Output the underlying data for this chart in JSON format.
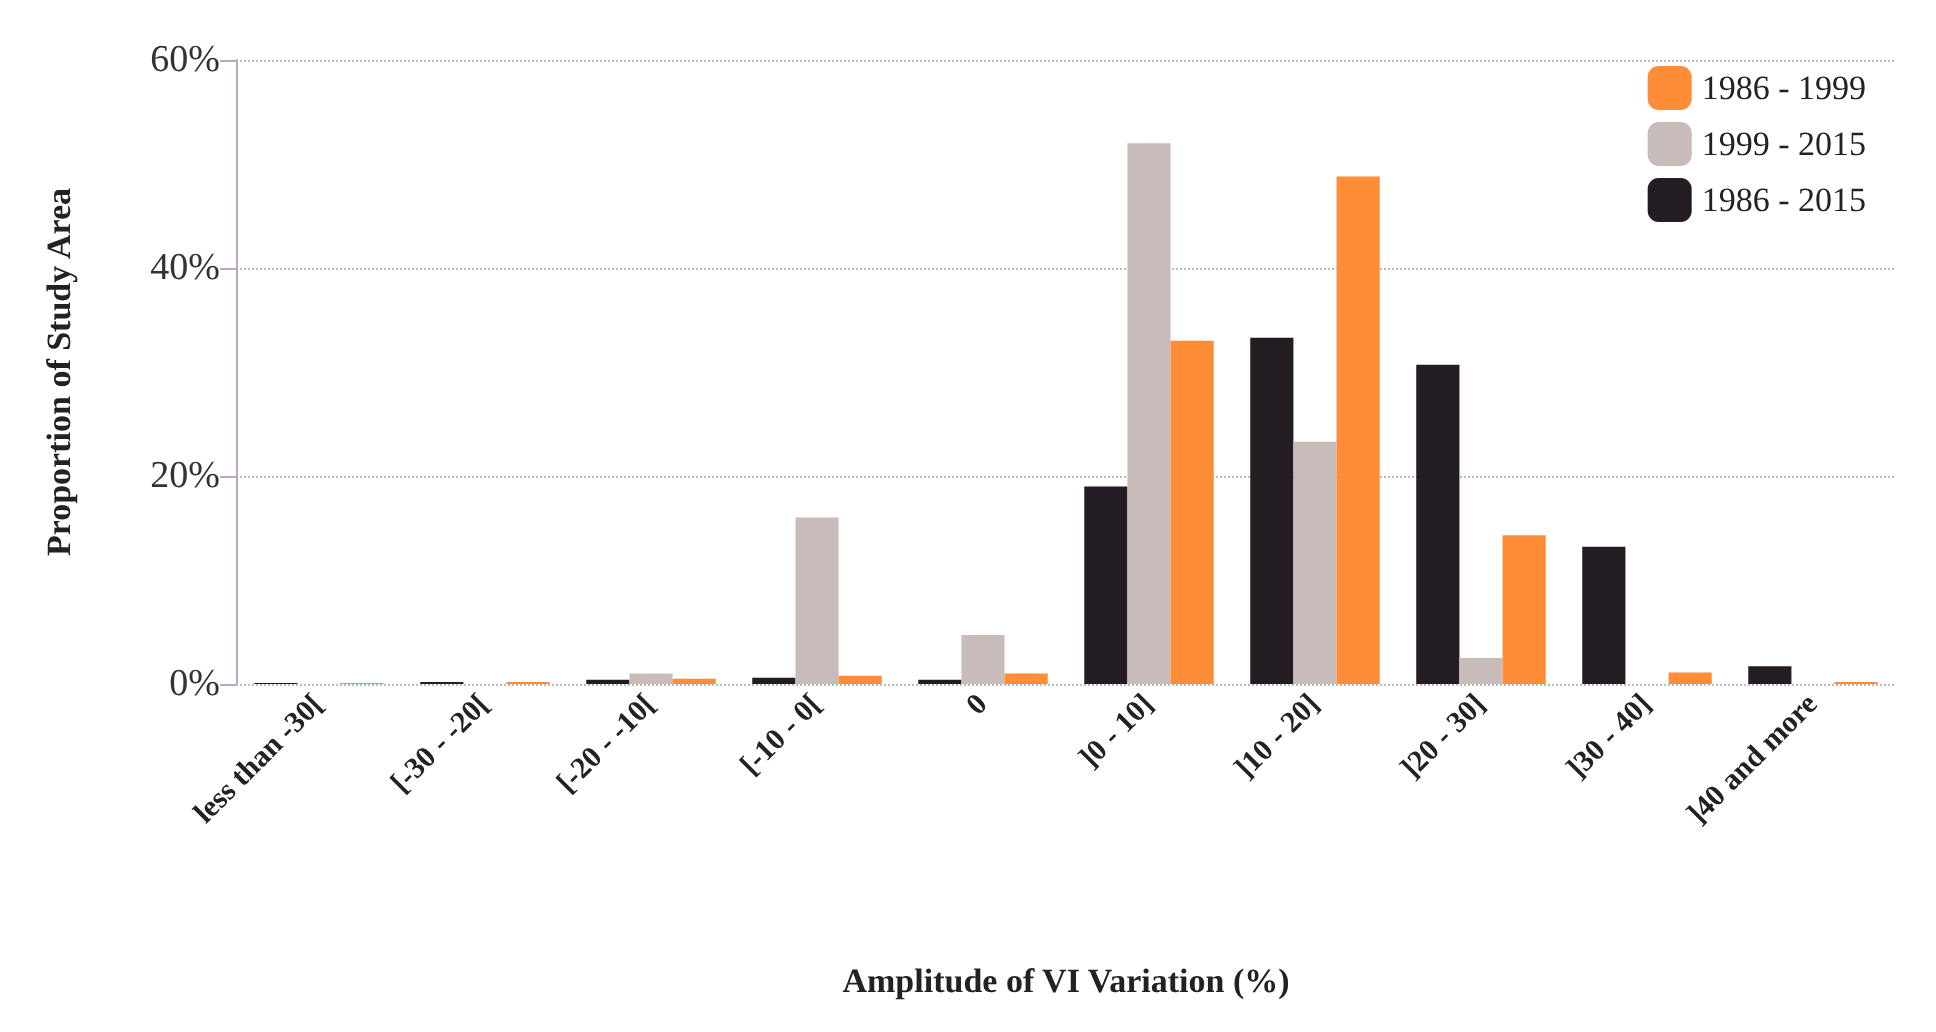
{
  "chart_data": {
    "type": "bar",
    "xlabel": "Amplitude of VI Variation (%)",
    "ylabel": "Proportion of Study Area",
    "categories": [
      "less than -30[",
      "[-30 - -20[",
      "[-20 - -10[",
      "[-10 - 0[",
      "0",
      "]0 - 10]",
      "]10 - 20]",
      "]20 - 30]",
      "]30 - 40]",
      "]40 and more"
    ],
    "series": [
      {
        "name": "1986 - 2015",
        "color": "#231c22",
        "values": [
          0.1,
          0.2,
          0.4,
          0.6,
          0.4,
          19,
          33.3,
          30.7,
          13.2,
          1.7
        ]
      },
      {
        "name": "1999 - 2015",
        "color": "#c8bcbb",
        "values": [
          0,
          null,
          1,
          16,
          4.7,
          52,
          23.3,
          2.5,
          null,
          null
        ]
      },
      {
        "name": "1986 - 1999",
        "color": "#ff8c37",
        "values": [
          0.1,
          0.2,
          0.5,
          0.8,
          1,
          33,
          48.8,
          14.3,
          1.1,
          0.2
        ]
      }
    ],
    "ylim": [
      0,
      60
    ],
    "yticks": [
      {
        "value": 0,
        "label": "0%"
      },
      {
        "value": 20,
        "label": "20%"
      },
      {
        "value": 40,
        "label": "40%"
      },
      {
        "value": 60,
        "label": "60%"
      }
    ],
    "grid": "y",
    "legend": "top right"
  }
}
